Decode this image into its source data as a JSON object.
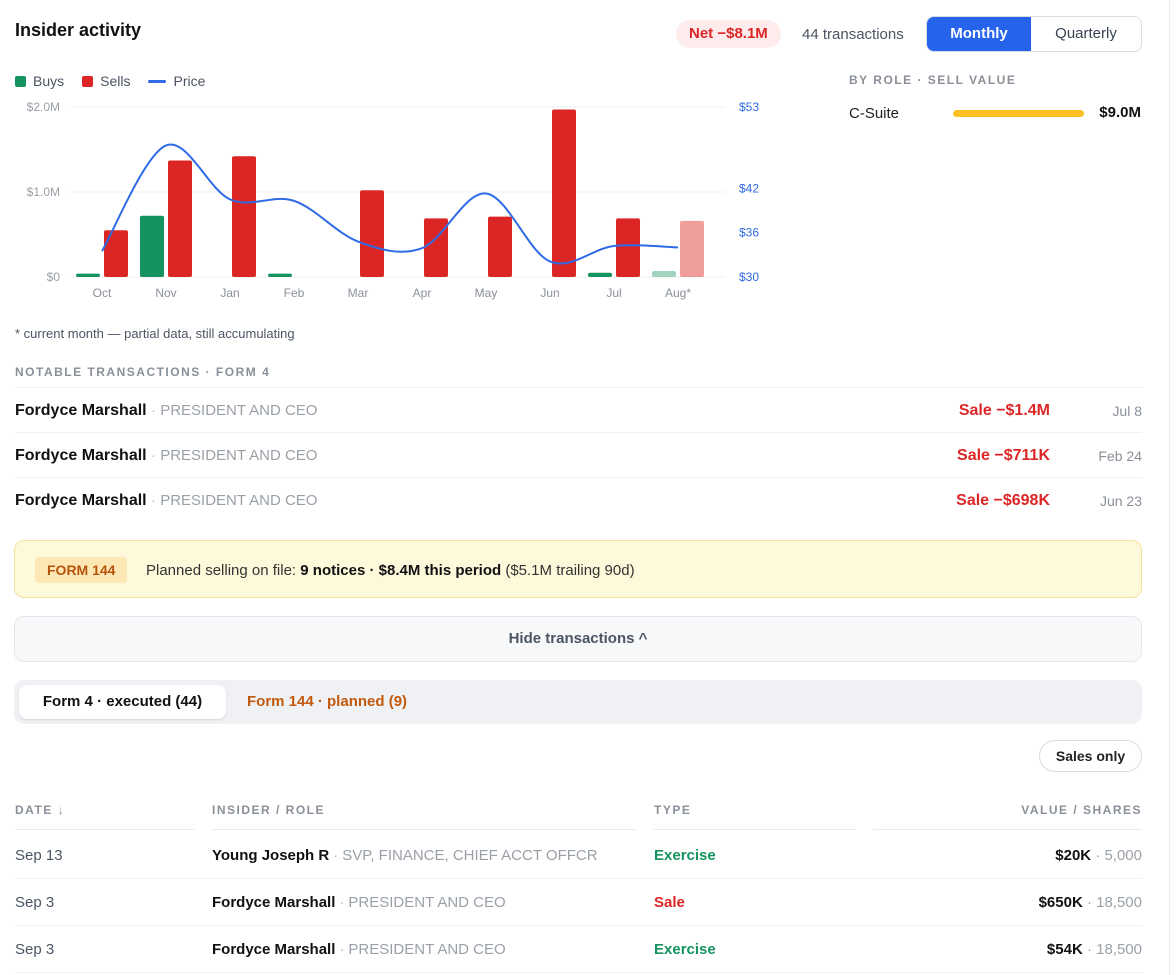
{
  "header": {
    "title": "Insider activity",
    "net_badge": "Net −$8.1M",
    "transaction_count": "44 transactions",
    "period_options": [
      "Monthly",
      "Quarterly"
    ],
    "selected_period": "Monthly"
  },
  "legend": {
    "buys": "Buys",
    "sells": "Sells",
    "price": "Price"
  },
  "colors": {
    "buy": "#15935f",
    "sell": "#dc2626",
    "price": "#2f6be6",
    "role_bar": "#fbbf24",
    "exercise": "#15935f",
    "accent": "#2563eb"
  },
  "chart_data": {
    "type": "bar",
    "categories": [
      "Oct",
      "Nov",
      "Jan",
      "Feb",
      "Mar",
      "Apr",
      "May",
      "Jun",
      "Jul",
      "Aug*"
    ],
    "series": [
      {
        "name": "Buys",
        "values": [
          0.04,
          0.72,
          0,
          0.04,
          0,
          0,
          0,
          0,
          0.05,
          0.07
        ]
      },
      {
        "name": "Sells",
        "values": [
          0.55,
          1.37,
          1.42,
          0,
          1.02,
          0.69,
          0.71,
          1.97,
          0.69,
          0.66
        ]
      },
      {
        "name": "Price",
        "values": [
          33.5,
          47.8,
          40.5,
          40.3,
          34.8,
          33.9,
          41.3,
          32.1,
          34.2,
          34.0
        ]
      }
    ],
    "partial_last": true,
    "ylim": [
      0,
      2.0
    ],
    "y_ticks": [
      "$0",
      "$1.0M",
      "$2.0M"
    ],
    "y2lim": [
      30,
      53
    ],
    "y2_ticks": [
      "$30",
      "$36",
      "$42",
      "$53"
    ],
    "footnote": "* current month — partial data, still accumulating"
  },
  "role": {
    "heading": "BY ROLE · SELL VALUE",
    "items": [
      {
        "name": "C-Suite",
        "value": "$9.0M"
      }
    ]
  },
  "notable": {
    "heading": "NOTABLE TRANSACTIONS · FORM 4",
    "items": [
      {
        "name": "Fordyce Marshall",
        "sep": "·",
        "role": "PRESIDENT AND CEO",
        "amount": "Sale −$1.4M",
        "date": "Jul 8"
      },
      {
        "name": "Fordyce Marshall",
        "sep": "·",
        "role": "PRESIDENT AND CEO",
        "amount": "Sale −$711K",
        "date": "Feb 24"
      },
      {
        "name": "Fordyce Marshall",
        "sep": "·",
        "role": "PRESIDENT AND CEO",
        "amount": "Sale −$698K",
        "date": "Jun 23"
      }
    ]
  },
  "form144": {
    "tag": "FORM 144",
    "text_prefix": "Planned selling on file: ",
    "text_bold": "9 notices · $8.4M this period",
    "text_suffix": " ($5.1M trailing 90d)"
  },
  "toggle": {
    "label": "Hide transactions ^"
  },
  "tabs": {
    "executed": "Form 4 · executed (44)",
    "planned": "Form 144 · planned (9)"
  },
  "filter": {
    "label": "Sales only"
  },
  "table": {
    "headers": {
      "date": "DATE ↓",
      "insider": "INSIDER / ROLE",
      "type": "TYPE",
      "value": "VALUE / SHARES"
    },
    "rows": [
      {
        "date": "Sep 13",
        "name": "Young Joseph R",
        "sep": "·",
        "role": "SVP, FINANCE, CHIEF ACCT OFFCR",
        "type": "Exercise",
        "value": "$20K",
        "shares": "· 5,000"
      },
      {
        "date": "Sep 3",
        "name": "Fordyce Marshall",
        "sep": "·",
        "role": "PRESIDENT AND CEO",
        "type": "Sale",
        "value": "$650K",
        "shares": "· 18,500"
      },
      {
        "date": "Sep 3",
        "name": "Fordyce Marshall",
        "sep": "·",
        "role": "PRESIDENT AND CEO",
        "type": "Exercise",
        "value": "$54K",
        "shares": "· 18,500"
      }
    ]
  }
}
